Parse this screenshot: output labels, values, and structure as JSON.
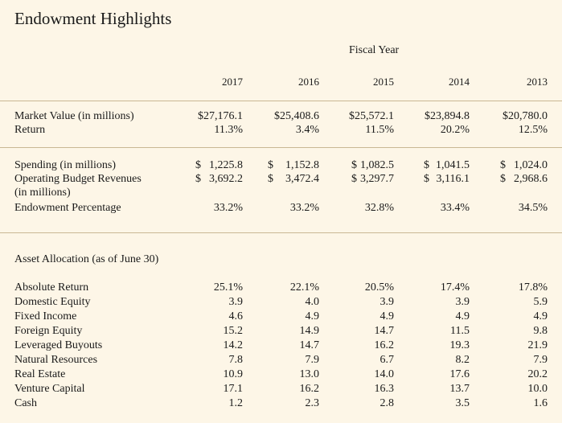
{
  "title": "Endowment Highlights",
  "fiscal_year_label": "Fiscal Year",
  "years": [
    "2017",
    "2016",
    "2015",
    "2014",
    "2013"
  ],
  "market_value": {
    "label": "Market Value (in millions)",
    "values": [
      "$27,176.1",
      "$25,408.6",
      "$25,572.1",
      "$23,894.8",
      "$20,780.0"
    ]
  },
  "return": {
    "label": "Return",
    "values": [
      "11.3%",
      "3.4%",
      "11.5%",
      "20.2%",
      "12.5%"
    ]
  },
  "spending": {
    "label": "Spending (in millions)",
    "dollar": "$",
    "values": [
      "1,225.8",
      "1,152.8",
      "1,082.5",
      "1,041.5",
      "1,024.0"
    ]
  },
  "operating_budget": {
    "label": "Operating Budget Revenues",
    "label_line2": "(in millions)",
    "dollar": "$",
    "values": [
      "3,692.2",
      "3,472.4",
      "3,297.7",
      "3,116.1",
      "2,968.6"
    ]
  },
  "endowment_percentage": {
    "label": "Endowment Percentage",
    "values": [
      "33.2%",
      "33.2%",
      "32.8%",
      "33.4%",
      "34.5%"
    ]
  },
  "asset_allocation": {
    "heading": "Asset Allocation (as of June 30)",
    "rows": [
      {
        "label": "Absolute Return",
        "values": [
          "25.1%",
          "22.1%",
          "20.5%",
          "17.4%",
          "17.8%"
        ]
      },
      {
        "label": "Domestic Equity",
        "values": [
          "3.9",
          "4.0",
          "3.9",
          "3.9",
          "5.9"
        ]
      },
      {
        "label": "Fixed Income",
        "values": [
          "4.6",
          "4.9",
          "4.9",
          "4.9",
          "4.9"
        ]
      },
      {
        "label": "Foreign Equity",
        "values": [
          "15.2",
          "14.9",
          "14.7",
          "11.5",
          "9.8"
        ]
      },
      {
        "label": "Leveraged Buyouts",
        "values": [
          "14.2",
          "14.7",
          "16.2",
          "19.3",
          "21.9"
        ]
      },
      {
        "label": "Natural Resources",
        "values": [
          "7.8",
          "7.9",
          "6.7",
          "8.2",
          "7.9"
        ]
      },
      {
        "label": "Real Estate",
        "values": [
          "10.9",
          "13.0",
          "14.0",
          "17.6",
          "20.2"
        ]
      },
      {
        "label": "Venture Capital",
        "values": [
          "17.1",
          "16.2",
          "16.3",
          "13.7",
          "10.0"
        ]
      },
      {
        "label": "Cash",
        "values": [
          "1.2",
          "2.3",
          "2.8",
          "3.5",
          "1.6"
        ]
      }
    ]
  }
}
